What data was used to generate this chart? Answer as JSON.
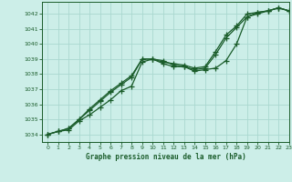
{
  "title": "Graphe pression niveau de la mer (hPa)",
  "bg_color": "#cceee8",
  "grid_color": "#aad8d0",
  "line_color": "#1a5c2a",
  "xlim": [
    -0.5,
    23
  ],
  "ylim": [
    1033.5,
    1042.8
  ],
  "yticks": [
    1034,
    1035,
    1036,
    1037,
    1038,
    1039,
    1040,
    1041,
    1042
  ],
  "xticks": [
    0,
    1,
    2,
    3,
    4,
    5,
    6,
    7,
    8,
    9,
    10,
    11,
    12,
    13,
    14,
    15,
    16,
    17,
    18,
    19,
    20,
    21,
    22,
    23
  ],
  "series1_x": [
    0,
    1,
    2,
    3,
    4,
    5,
    6,
    7,
    8,
    9,
    10,
    11,
    12,
    13,
    14,
    15,
    16,
    17,
    18,
    19,
    20,
    21,
    22,
    23
  ],
  "series1_y": [
    1034.0,
    1034.2,
    1034.3,
    1034.9,
    1035.3,
    1035.8,
    1036.3,
    1036.9,
    1037.2,
    1038.8,
    1039.0,
    1038.7,
    1038.5,
    1038.5,
    1038.2,
    1038.3,
    1038.4,
    1038.9,
    1040.0,
    1041.8,
    1042.0,
    1042.2,
    1042.4,
    1042.2
  ],
  "series2_x": [
    0,
    1,
    2,
    3,
    4,
    5,
    6,
    7,
    8,
    9,
    10,
    11,
    12,
    13,
    14,
    15,
    16,
    17,
    18,
    19,
    20,
    21,
    22,
    23
  ],
  "series2_y": [
    1034.0,
    1034.2,
    1034.4,
    1035.0,
    1035.6,
    1036.2,
    1036.8,
    1037.3,
    1037.8,
    1039.0,
    1039.0,
    1038.9,
    1038.6,
    1038.5,
    1038.3,
    1038.4,
    1039.3,
    1040.4,
    1041.1,
    1041.8,
    1042.1,
    1042.2,
    1042.4,
    1042.2
  ],
  "series3_x": [
    0,
    1,
    2,
    3,
    4,
    5,
    6,
    7,
    8,
    9,
    10,
    11,
    12,
    13,
    14,
    15,
    16,
    17,
    18,
    19,
    20,
    21,
    22,
    23
  ],
  "series3_y": [
    1034.0,
    1034.2,
    1034.4,
    1035.0,
    1035.7,
    1036.3,
    1036.9,
    1037.4,
    1037.9,
    1039.0,
    1039.0,
    1038.8,
    1038.7,
    1038.6,
    1038.4,
    1038.5,
    1039.5,
    1040.6,
    1041.2,
    1042.0,
    1042.1,
    1042.2,
    1042.4,
    1042.2
  ]
}
